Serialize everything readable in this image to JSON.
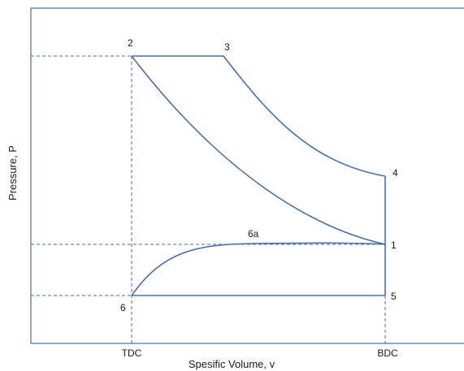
{
  "diagram": {
    "ylabel": "Pressure, P",
    "xlabel": "Spesific Volume, v",
    "x_ticks": [
      {
        "id": "tdc",
        "label": "TDC"
      },
      {
        "id": "bdc",
        "label": "BDC"
      }
    ],
    "points": [
      {
        "id": "p1",
        "label": "1"
      },
      {
        "id": "p2",
        "label": "2"
      },
      {
        "id": "p3",
        "label": "3"
      },
      {
        "id": "p4",
        "label": "4"
      },
      {
        "id": "p5",
        "label": "5"
      },
      {
        "id": "p6",
        "label": "6"
      },
      {
        "id": "p6a",
        "label": "6a"
      }
    ],
    "colors": {
      "line": "#4a6fa5",
      "text": "#1a1a1a"
    }
  }
}
